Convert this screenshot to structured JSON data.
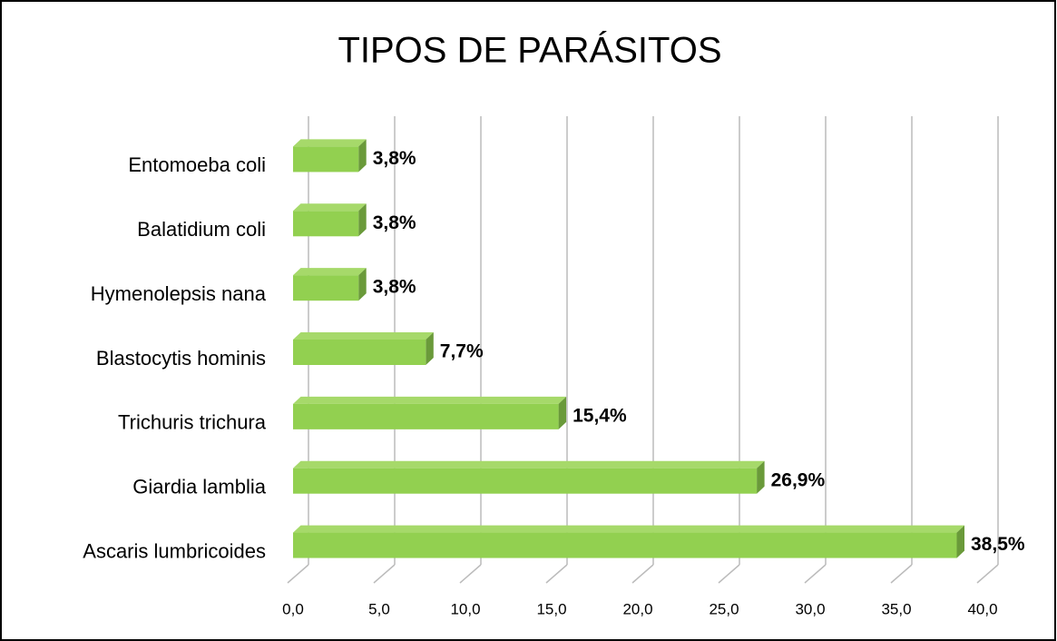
{
  "chart_data": {
    "type": "bar",
    "orientation": "horizontal",
    "title": "TIPOS DE PARÁSITOS",
    "categories": [
      "Entomoeba coli",
      "Balatidium coli",
      "Hymenolepsis nana",
      "Blastocytis hominis",
      "Trichuris trichura",
      "Giardia lamblia",
      "Ascaris lumbricoides"
    ],
    "values": [
      3.8,
      3.8,
      3.8,
      7.7,
      15.4,
      26.9,
      38.5
    ],
    "value_labels": [
      "3,8%",
      "3,8%",
      "3,8%",
      "7,7%",
      "15,4%",
      "26,9%",
      "38,5%"
    ],
    "color": "#92d050",
    "xlim": [
      0,
      40
    ],
    "xticks": [
      {
        "value": 0,
        "label": "0,0"
      },
      {
        "value": 5,
        "label": "5,0"
      },
      {
        "value": 10,
        "label": "10,0"
      },
      {
        "value": 15,
        "label": "15,0"
      },
      {
        "value": 20,
        "label": "20,0"
      },
      {
        "value": 25,
        "label": "25,0"
      },
      {
        "value": 30,
        "label": "30,0"
      },
      {
        "value": 35,
        "label": "35,0"
      },
      {
        "value": 40,
        "label": "40,0"
      }
    ],
    "grid": true
  }
}
